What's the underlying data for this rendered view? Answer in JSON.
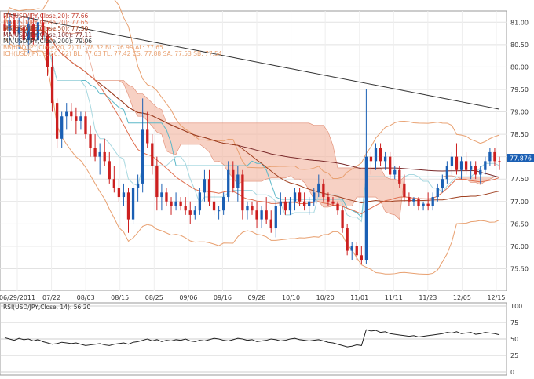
{
  "chart_data": {
    "type": "candlestick",
    "symbol": "USD/JPY",
    "price_panel": {
      "ylim": [
        75.0,
        81.25
      ],
      "yticks": [
        "81.00",
        "80.50",
        "80.00",
        "79.50",
        "79.00",
        "78.50",
        "78.00",
        "77.50",
        "77.00",
        "76.50",
        "76.00",
        "75.50"
      ],
      "last_price_label": "77.876",
      "grid": true
    },
    "x_ticks": [
      "06/29/2011",
      "07/22",
      "08/03",
      "08/15",
      "08/25",
      "09/06",
      "09/16",
      "09/28",
      "10/10",
      "10/20",
      "11/01",
      "11/11",
      "11/23",
      "12/05",
      "12/15"
    ],
    "legend": [
      {
        "text": "MA(USD/JPY,Close,20): 77.66",
        "color": "#c0392b"
      },
      {
        "text": "MA(USD/JPY,Close,20): 77.65",
        "color": "#e07050"
      },
      {
        "text": "MA(USD/JPY,Close,50): 77.30",
        "color": "#a04020"
      },
      {
        "text": "MA(USD/JPY,Close,100): 77.11",
        "color": "#7a2a2a"
      },
      {
        "text": "MA(USD/JPY,Close,200): 79.06",
        "color": "#333333"
      },
      {
        "text": "BB(USD/JPY,Close,20, 2)  TL: 78.32  BL: 76.99  AL: 77.65",
        "color": "#e8a070"
      },
      {
        "text": "ICH(USD/JPY, 9, 26, 52)  BL: 77.63  TL: 77.42  CS: 77.88  SA: 77.53  SB: 77.54",
        "color": "#e8a070"
      }
    ],
    "candles": [
      {
        "t": "06/29/2011",
        "o": 80.95,
        "h": 81.15,
        "l": 80.7,
        "c": 80.8
      },
      {
        "o": 80.8,
        "h": 81.2,
        "l": 80.5,
        "c": 81.05
      },
      {
        "o": 81.05,
        "h": 81.2,
        "l": 80.7,
        "c": 80.75
      },
      {
        "o": 80.75,
        "h": 81.1,
        "l": 80.4,
        "c": 80.9
      },
      {
        "o": 80.9,
        "h": 81.15,
        "l": 80.5,
        "c": 80.6
      },
      {
        "o": 80.6,
        "h": 81.1,
        "l": 80.3,
        "c": 80.95
      },
      {
        "o": 80.95,
        "h": 81.1,
        "l": 80.5,
        "c": 80.6
      },
      {
        "o": 80.6,
        "h": 81.15,
        "l": 80.3,
        "c": 81.0
      },
      {
        "o": 81.0,
        "h": 81.2,
        "l": 80.6,
        "c": 80.7
      },
      {
        "o": 80.7,
        "h": 80.9,
        "l": 79.8,
        "c": 80.0
      },
      {
        "o": 80.0,
        "h": 80.3,
        "l": 79.0,
        "c": 79.2
      },
      {
        "o": 79.2,
        "h": 79.3,
        "l": 78.2,
        "c": 78.4
      },
      {
        "o": 78.4,
        "h": 79.0,
        "l": 78.2,
        "c": 78.9
      },
      {
        "o": 78.9,
        "h": 79.2,
        "l": 78.6,
        "c": 79.0
      },
      {
        "o": 79.0,
        "h": 79.2,
        "l": 78.8,
        "c": 78.9
      },
      {
        "o": 78.9,
        "h": 79.1,
        "l": 78.5,
        "c": 78.8
      },
      {
        "o": 78.8,
        "h": 79.0,
        "l": 78.6,
        "c": 78.9
      },
      {
        "o": 78.9,
        "h": 79.0,
        "l": 78.4,
        "c": 78.5
      },
      {
        "o": 78.5,
        "h": 78.7,
        "l": 78.0,
        "c": 78.2
      },
      {
        "o": 78.2,
        "h": 78.5,
        "l": 77.9,
        "c": 78.0
      },
      {
        "o": 78.0,
        "h": 78.3,
        "l": 77.6,
        "c": 78.1
      },
      {
        "o": 78.1,
        "h": 78.4,
        "l": 77.8,
        "c": 77.9
      },
      {
        "o": 77.9,
        "h": 78.1,
        "l": 77.4,
        "c": 77.5
      },
      {
        "o": 77.5,
        "h": 77.8,
        "l": 77.2,
        "c": 77.3
      },
      {
        "o": 77.3,
        "h": 77.5,
        "l": 77.0,
        "c": 77.1
      },
      {
        "o": 77.1,
        "h": 77.4,
        "l": 76.9,
        "c": 77.2
      },
      {
        "o": 77.2,
        "h": 77.3,
        "l": 76.3,
        "c": 76.6
      },
      {
        "o": 76.6,
        "h": 77.4,
        "l": 76.5,
        "c": 77.3
      },
      {
        "o": 77.3,
        "h": 77.6,
        "l": 77.0,
        "c": 77.4
      },
      {
        "o": 77.4,
        "h": 79.3,
        "l": 77.2,
        "c": 78.6
      },
      {
        "o": 78.6,
        "h": 79.0,
        "l": 78.2,
        "c": 78.3
      },
      {
        "o": 78.3,
        "h": 78.5,
        "l": 77.6,
        "c": 77.8
      },
      {
        "o": 77.8,
        "h": 78.0,
        "l": 76.8,
        "c": 77.1
      },
      {
        "o": 77.1,
        "h": 77.4,
        "l": 76.8,
        "c": 77.2
      },
      {
        "o": 77.2,
        "h": 77.3,
        "l": 76.9,
        "c": 77.0
      },
      {
        "o": 77.0,
        "h": 77.1,
        "l": 76.7,
        "c": 76.9
      },
      {
        "o": 76.9,
        "h": 77.2,
        "l": 76.8,
        "c": 77.0
      },
      {
        "o": 77.0,
        "h": 77.1,
        "l": 76.8,
        "c": 76.9
      },
      {
        "o": 76.9,
        "h": 77.1,
        "l": 76.7,
        "c": 76.8
      },
      {
        "o": 76.8,
        "h": 77.0,
        "l": 76.5,
        "c": 76.7
      },
      {
        "o": 76.7,
        "h": 76.9,
        "l": 76.6,
        "c": 76.8
      },
      {
        "o": 76.8,
        "h": 77.3,
        "l": 76.7,
        "c": 77.2
      },
      {
        "o": 77.2,
        "h": 77.7,
        "l": 77.0,
        "c": 77.5
      },
      {
        "o": 77.5,
        "h": 77.7,
        "l": 76.9,
        "c": 77.0
      },
      {
        "o": 77.0,
        "h": 77.2,
        "l": 76.7,
        "c": 76.8
      },
      {
        "o": 76.8,
        "h": 76.9,
        "l": 76.6,
        "c": 76.8
      },
      {
        "o": 76.8,
        "h": 77.2,
        "l": 76.7,
        "c": 77.1
      },
      {
        "o": 77.1,
        "h": 77.9,
        "l": 77.0,
        "c": 77.7
      },
      {
        "o": 77.7,
        "h": 77.9,
        "l": 77.2,
        "c": 77.3
      },
      {
        "o": 77.3,
        "h": 77.8,
        "l": 77.0,
        "c": 77.6
      },
      {
        "o": 77.6,
        "h": 77.7,
        "l": 76.6,
        "c": 76.8
      },
      {
        "o": 76.8,
        "h": 77.0,
        "l": 76.6,
        "c": 76.9
      },
      {
        "o": 76.9,
        "h": 77.0,
        "l": 76.7,
        "c": 76.8
      },
      {
        "o": 76.8,
        "h": 77.0,
        "l": 76.4,
        "c": 76.6
      },
      {
        "o": 76.6,
        "h": 76.9,
        "l": 76.4,
        "c": 76.8
      },
      {
        "o": 76.8,
        "h": 77.1,
        "l": 76.5,
        "c": 76.6
      },
      {
        "o": 76.6,
        "h": 76.8,
        "l": 76.3,
        "c": 76.4
      },
      {
        "o": 76.4,
        "h": 77.0,
        "l": 76.2,
        "c": 76.9
      },
      {
        "o": 76.9,
        "h": 77.2,
        "l": 76.7,
        "c": 77.0
      },
      {
        "o": 77.0,
        "h": 77.1,
        "l": 76.7,
        "c": 76.8
      },
      {
        "o": 76.8,
        "h": 77.1,
        "l": 76.7,
        "c": 77.0
      },
      {
        "o": 77.0,
        "h": 77.3,
        "l": 76.8,
        "c": 77.2
      },
      {
        "o": 77.2,
        "h": 77.3,
        "l": 76.9,
        "c": 77.0
      },
      {
        "o": 77.0,
        "h": 77.2,
        "l": 76.8,
        "c": 76.9
      },
      {
        "o": 76.9,
        "h": 77.1,
        "l": 76.7,
        "c": 77.0
      },
      {
        "o": 77.0,
        "h": 77.3,
        "l": 76.9,
        "c": 77.2
      },
      {
        "o": 77.2,
        "h": 77.6,
        "l": 77.1,
        "c": 77.4
      },
      {
        "o": 77.4,
        "h": 77.5,
        "l": 77.0,
        "c": 77.1
      },
      {
        "o": 77.1,
        "h": 77.2,
        "l": 76.9,
        "c": 77.0
      },
      {
        "o": 77.0,
        "h": 77.1,
        "l": 76.9,
        "c": 76.95
      },
      {
        "o": 76.95,
        "h": 77.0,
        "l": 76.7,
        "c": 76.8
      },
      {
        "o": 76.8,
        "h": 76.9,
        "l": 76.3,
        "c": 76.4
      },
      {
        "o": 76.4,
        "h": 76.5,
        "l": 75.8,
        "c": 75.9
      },
      {
        "o": 75.9,
        "h": 76.1,
        "l": 75.7,
        "c": 76.0
      },
      {
        "o": 76.0,
        "h": 76.1,
        "l": 75.7,
        "c": 75.8
      },
      {
        "o": 75.8,
        "h": 76.0,
        "l": 75.6,
        "c": 75.7
      },
      {
        "o": 75.7,
        "h": 79.5,
        "l": 75.6,
        "c": 78.0
      },
      {
        "o": 78.0,
        "h": 78.1,
        "l": 77.6,
        "c": 77.9
      },
      {
        "t": "11/01",
        "o": 77.9,
        "h": 78.3,
        "l": 77.7,
        "c": 78.2
      },
      {
        "o": 78.2,
        "h": 78.3,
        "l": 77.8,
        "c": 77.9
      },
      {
        "o": 77.9,
        "h": 78.1,
        "l": 77.7,
        "c": 78.0
      },
      {
        "o": 78.0,
        "h": 78.1,
        "l": 77.5,
        "c": 77.6
      },
      {
        "o": 77.6,
        "h": 77.8,
        "l": 77.5,
        "c": 77.7
      },
      {
        "o": 77.7,
        "h": 77.8,
        "l": 77.3,
        "c": 77.4
      },
      {
        "o": 77.4,
        "h": 77.6,
        "l": 77.0,
        "c": 77.1
      },
      {
        "o": 77.1,
        "h": 77.2,
        "l": 76.9,
        "c": 77.0
      },
      {
        "o": 77.0,
        "h": 77.1,
        "l": 76.9,
        "c": 77.05
      },
      {
        "o": 77.05,
        "h": 77.1,
        "l": 76.8,
        "c": 76.9
      },
      {
        "o": 76.9,
        "h": 77.0,
        "l": 76.8,
        "c": 76.95
      },
      {
        "o": 76.95,
        "h": 77.2,
        "l": 76.8,
        "c": 76.9
      },
      {
        "o": 76.9,
        "h": 77.2,
        "l": 76.8,
        "c": 77.1
      },
      {
        "o": 77.1,
        "h": 77.4,
        "l": 77.0,
        "c": 77.3
      },
      {
        "o": 77.3,
        "h": 77.6,
        "l": 77.2,
        "c": 77.5
      },
      {
        "o": 77.5,
        "h": 77.9,
        "l": 77.4,
        "c": 77.8
      },
      {
        "o": 77.8,
        "h": 78.1,
        "l": 77.6,
        "c": 78.0
      },
      {
        "o": 78.0,
        "h": 78.3,
        "l": 77.6,
        "c": 77.7
      },
      {
        "o": 77.7,
        "h": 78.0,
        "l": 77.5,
        "c": 77.9
      },
      {
        "o": 77.9,
        "h": 78.1,
        "l": 77.6,
        "c": 77.7
      },
      {
        "o": 77.7,
        "h": 77.9,
        "l": 77.5,
        "c": 77.8
      },
      {
        "o": 77.8,
        "h": 77.9,
        "l": 77.5,
        "c": 77.6
      },
      {
        "o": 77.6,
        "h": 77.8,
        "l": 77.4,
        "c": 77.7
      },
      {
        "o": 77.7,
        "h": 78.0,
        "l": 77.6,
        "c": 77.9
      },
      {
        "o": 77.9,
        "h": 78.2,
        "l": 77.8,
        "c": 78.1
      },
      {
        "o": 78.1,
        "h": 78.2,
        "l": 77.8,
        "c": 77.9
      },
      {
        "t": "12/15",
        "o": 77.9,
        "h": 78.0,
        "l": 77.7,
        "c": 77.88
      }
    ]
  },
  "rsi_panel": {
    "label": "RSI(USD/JPY,Close, 14): 56.20",
    "ylim": [
      0,
      100
    ],
    "yticks": [
      "100",
      "75",
      "50",
      "25",
      "0"
    ],
    "values": [
      52,
      50,
      48,
      51,
      49,
      50,
      47,
      49,
      46,
      44,
      42,
      43,
      45,
      44,
      43,
      44,
      42,
      40,
      41,
      42,
      43,
      41,
      40,
      42,
      43,
      44,
      42,
      45,
      46,
      48,
      50,
      47,
      49,
      46,
      48,
      47,
      49,
      48,
      50,
      47,
      46,
      48,
      47,
      49,
      51,
      50,
      48,
      47,
      49,
      51,
      50,
      48,
      49,
      46,
      47,
      48,
      50,
      49,
      47,
      48,
      50,
      51,
      49,
      48,
      47,
      48,
      49,
      47,
      45,
      44,
      42,
      40,
      38,
      39,
      41,
      40,
      64,
      62,
      63,
      60,
      61,
      58,
      57,
      56,
      55,
      54,
      55,
      53,
      54,
      55,
      56,
      57,
      58,
      60,
      59,
      61,
      58,
      59,
      60,
      57,
      58,
      60,
      59,
      58,
      56.2
    ]
  }
}
